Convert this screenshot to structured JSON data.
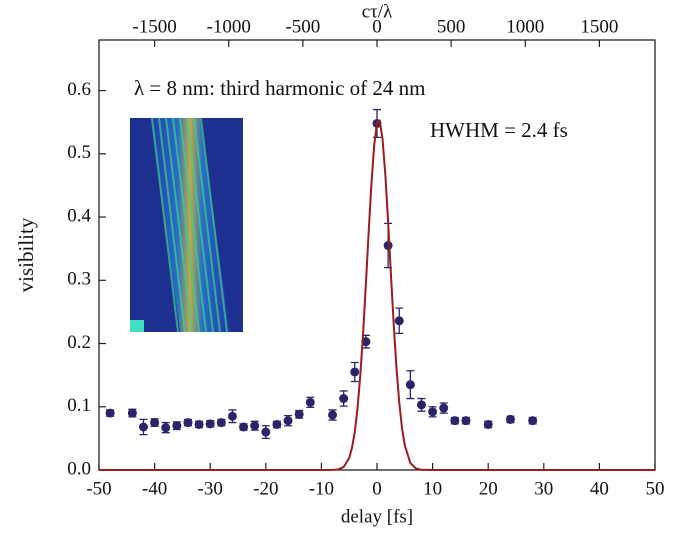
{
  "chart_data": {
    "type": "scatter",
    "xlabel": "delay [fs]",
    "ylabel": "visibility",
    "x2label": "cτ/λ",
    "annotations": [
      "λ = 8 nm: third harmonic of 24 nm",
      "HWHM = 2.4 fs"
    ],
    "xlim": [
      -50,
      50
    ],
    "xticks": [
      -50,
      -40,
      -30,
      -20,
      -10,
      0,
      10,
      20,
      30,
      40,
      50
    ],
    "x2lim": [
      -1875,
      1875
    ],
    "x2ticks": [
      -1500,
      -1000,
      -500,
      0,
      500,
      1000,
      1500
    ],
    "ylim": [
      0,
      0.68
    ],
    "yticks": [
      {
        "value": 0,
        "label": "0.0"
      },
      0.1,
      0.2,
      0.3,
      0.4,
      0.5,
      0.6
    ],
    "series": [
      {
        "color": "#2b2468",
        "x": [
          -48,
          -44,
          -42,
          -40,
          -38,
          -36,
          -34,
          -32,
          -30,
          -28,
          -26,
          -24,
          -22,
          -20,
          -18,
          -16,
          -14,
          -12,
          -8,
          -6,
          -4,
          -2,
          0,
          2,
          4,
          6,
          8,
          10,
          12,
          14,
          16,
          20,
          24,
          28
        ],
        "values": [
          0.09,
          0.09,
          0.068,
          0.075,
          0.067,
          0.07,
          0.075,
          0.072,
          0.073,
          0.075,
          0.085,
          0.068,
          0.07,
          0.06,
          0.072,
          0.078,
          0.088,
          0.107,
          0.087,
          0.113,
          0.155,
          0.203,
          0.548,
          0.355,
          0.236,
          0.135,
          0.103,
          0.092,
          0.098,
          0.078,
          0.078,
          0.072,
          0.08,
          0.078
        ],
        "errors": [
          0.005,
          0.006,
          0.012,
          0.006,
          0.008,
          0.006,
          0.005,
          0.005,
          0.005,
          0.005,
          0.01,
          0.005,
          0.007,
          0.01,
          0.005,
          0.008,
          0.006,
          0.008,
          0.008,
          0.012,
          0.015,
          0.01,
          0.022,
          0.035,
          0.02,
          0.022,
          0.01,
          0.008,
          0.008,
          0.005,
          0.005,
          0.005,
          0.005,
          0.005
        ]
      },
      {
        "color": "#9a1c1c",
        "x": [
          -50,
          -10,
          -8,
          -7,
          -6,
          -5,
          -4.5,
          -4,
          -3.5,
          -3,
          -2.5,
          -2,
          -1.5,
          -1,
          -0.5,
          0,
          0.5,
          1,
          1.5,
          2,
          2.5,
          3,
          3.5,
          4,
          4.5,
          5,
          6,
          7,
          8,
          10,
          50
        ],
        "values": [
          0,
          0,
          0.0001,
          0.0009,
          0.0047,
          0.019,
          0.035,
          0.06,
          0.098,
          0.15,
          0.216,
          0.294,
          0.376,
          0.453,
          0.514,
          0.549,
          0.552,
          0.523,
          0.467,
          0.392,
          0.31,
          0.231,
          0.162,
          0.107,
          0.066,
          0.039,
          0.011,
          0.0025,
          0.0003,
          0,
          0
        ]
      }
    ]
  }
}
